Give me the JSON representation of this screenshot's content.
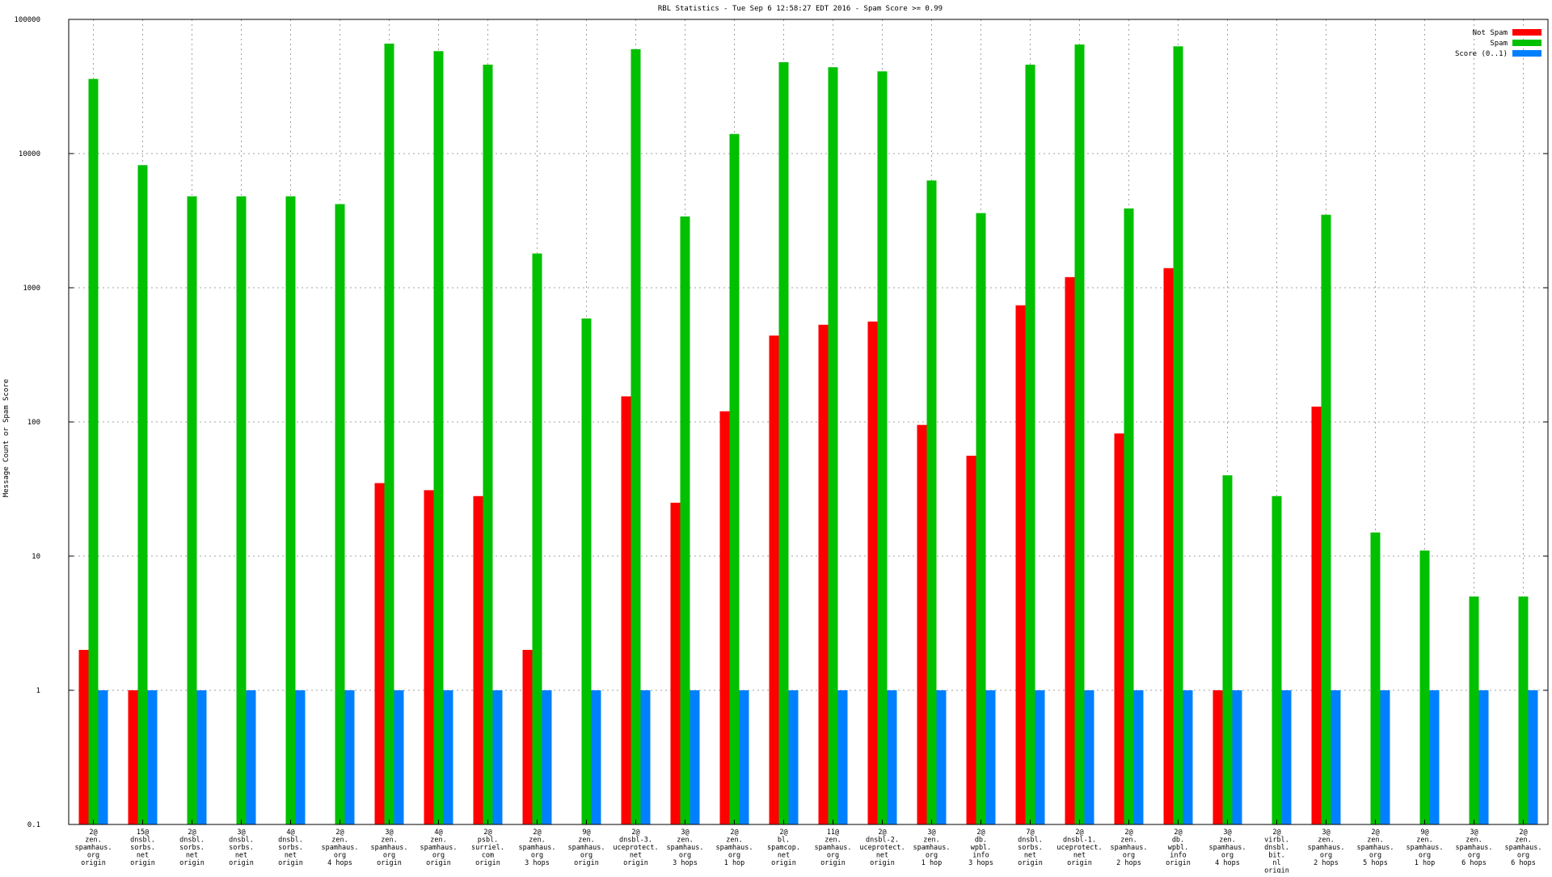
{
  "chart_data": {
    "type": "bar",
    "title": "RBL Statistics - Tue Sep  6 12:58:27 EDT 2016 - Spam Score >= 0.99",
    "xlabel": "",
    "ylabel": "Message Count or Spam Score",
    "y_scale": "log",
    "ylim": [
      0.1,
      100000
    ],
    "y_ticks": [
      "0.1",
      "1",
      "10",
      "100",
      "1000",
      "10000",
      "100000"
    ],
    "grid": true,
    "legend_position": "top-right",
    "categories": [
      [
        "2@",
        "zen.",
        "spamhaus.",
        "org",
        "origin"
      ],
      [
        "15@",
        "dnsbl.",
        "sorbs.",
        "net",
        "origin"
      ],
      [
        "2@",
        "dnsbl.",
        "sorbs.",
        "net",
        "origin"
      ],
      [
        "3@",
        "dnsbl.",
        "sorbs.",
        "net",
        "origin"
      ],
      [
        "4@",
        "dnsbl.",
        "sorbs.",
        "net",
        "origin"
      ],
      [
        "2@",
        "zen.",
        "spamhaus.",
        "org",
        "4 hops"
      ],
      [
        "3@",
        "zen.",
        "spamhaus.",
        "org",
        "origin"
      ],
      [
        "4@",
        "zen.",
        "spamhaus.",
        "org",
        "origin"
      ],
      [
        "2@",
        "psbl.",
        "surriel.",
        "com",
        "origin"
      ],
      [
        "2@",
        "zen.",
        "spamhaus.",
        "org",
        "3 hops"
      ],
      [
        "9@",
        "zen.",
        "spamhaus.",
        "org",
        "origin"
      ],
      [
        "2@",
        "dnsbl-3.",
        "uceprotect.",
        "net",
        "origin"
      ],
      [
        "3@",
        "zen.",
        "spamhaus.",
        "org",
        "3 hops"
      ],
      [
        "2@",
        "zen.",
        "spamhaus.",
        "org",
        "1 hop"
      ],
      [
        "2@",
        "bl.",
        "spamcop.",
        "net",
        "origin"
      ],
      [
        "11@",
        "zen.",
        "spamhaus.",
        "org",
        "origin"
      ],
      [
        "2@",
        "dnsbl-2.",
        "uceprotect.",
        "net",
        "origin"
      ],
      [
        "3@",
        "zen.",
        "spamhaus.",
        "org",
        "1 hop"
      ],
      [
        "2@",
        "db.",
        "wpbl.",
        "info",
        "3 hops"
      ],
      [
        "7@",
        "dnsbl.",
        "sorbs.",
        "net",
        "origin"
      ],
      [
        "2@",
        "dnsbl-1.",
        "uceprotect.",
        "net",
        "origin"
      ],
      [
        "2@",
        "zen.",
        "spamhaus.",
        "org",
        "2 hops"
      ],
      [
        "2@",
        "db.",
        "wpbl.",
        "info",
        "origin"
      ],
      [
        "3@",
        "zen.",
        "spamhaus.",
        "org",
        "4 hops"
      ],
      [
        "2@",
        "virbl.",
        "dnsbl.",
        "bit.",
        "nl",
        "origin"
      ],
      [
        "3@",
        "zen.",
        "spamhaus.",
        "org",
        "2 hops"
      ],
      [
        "2@",
        "zen.",
        "spamhaus.",
        "org",
        "5 hops"
      ],
      [
        "9@",
        "zen.",
        "spamhaus.",
        "org",
        "1 hop"
      ],
      [
        "3@",
        "zen.",
        "spamhaus.",
        "org",
        "6 hops"
      ],
      [
        "2@",
        "zen.",
        "spamhaus.",
        "org",
        "6 hops"
      ]
    ],
    "series": [
      {
        "name": "Not Spam",
        "color": "#ff0000",
        "values": [
          2,
          1,
          null,
          null,
          null,
          null,
          35,
          31,
          28,
          2,
          null,
          155,
          25,
          120,
          440,
          530,
          560,
          95,
          56,
          740,
          1200,
          82,
          1400,
          1,
          null,
          130,
          null,
          null,
          null,
          null
        ]
      },
      {
        "name": "Spam",
        "color": "#00c000",
        "values": [
          36000,
          8200,
          4800,
          4800,
          4800,
          4200,
          66000,
          58000,
          46000,
          1800,
          590,
          60000,
          3400,
          14000,
          48000,
          44000,
          41000,
          6300,
          3600,
          46000,
          65000,
          3900,
          63000,
          40,
          28,
          3500,
          15,
          11,
          5,
          5
        ]
      },
      {
        "name": "Score (0..1)",
        "color": "#0080ff",
        "values": [
          1,
          1,
          1,
          1,
          1,
          1,
          1,
          1,
          1,
          1,
          1,
          1,
          1,
          1,
          1,
          1,
          1,
          1,
          1,
          1,
          1,
          1,
          1,
          1,
          1,
          1,
          1,
          1,
          1,
          1
        ]
      }
    ]
  }
}
